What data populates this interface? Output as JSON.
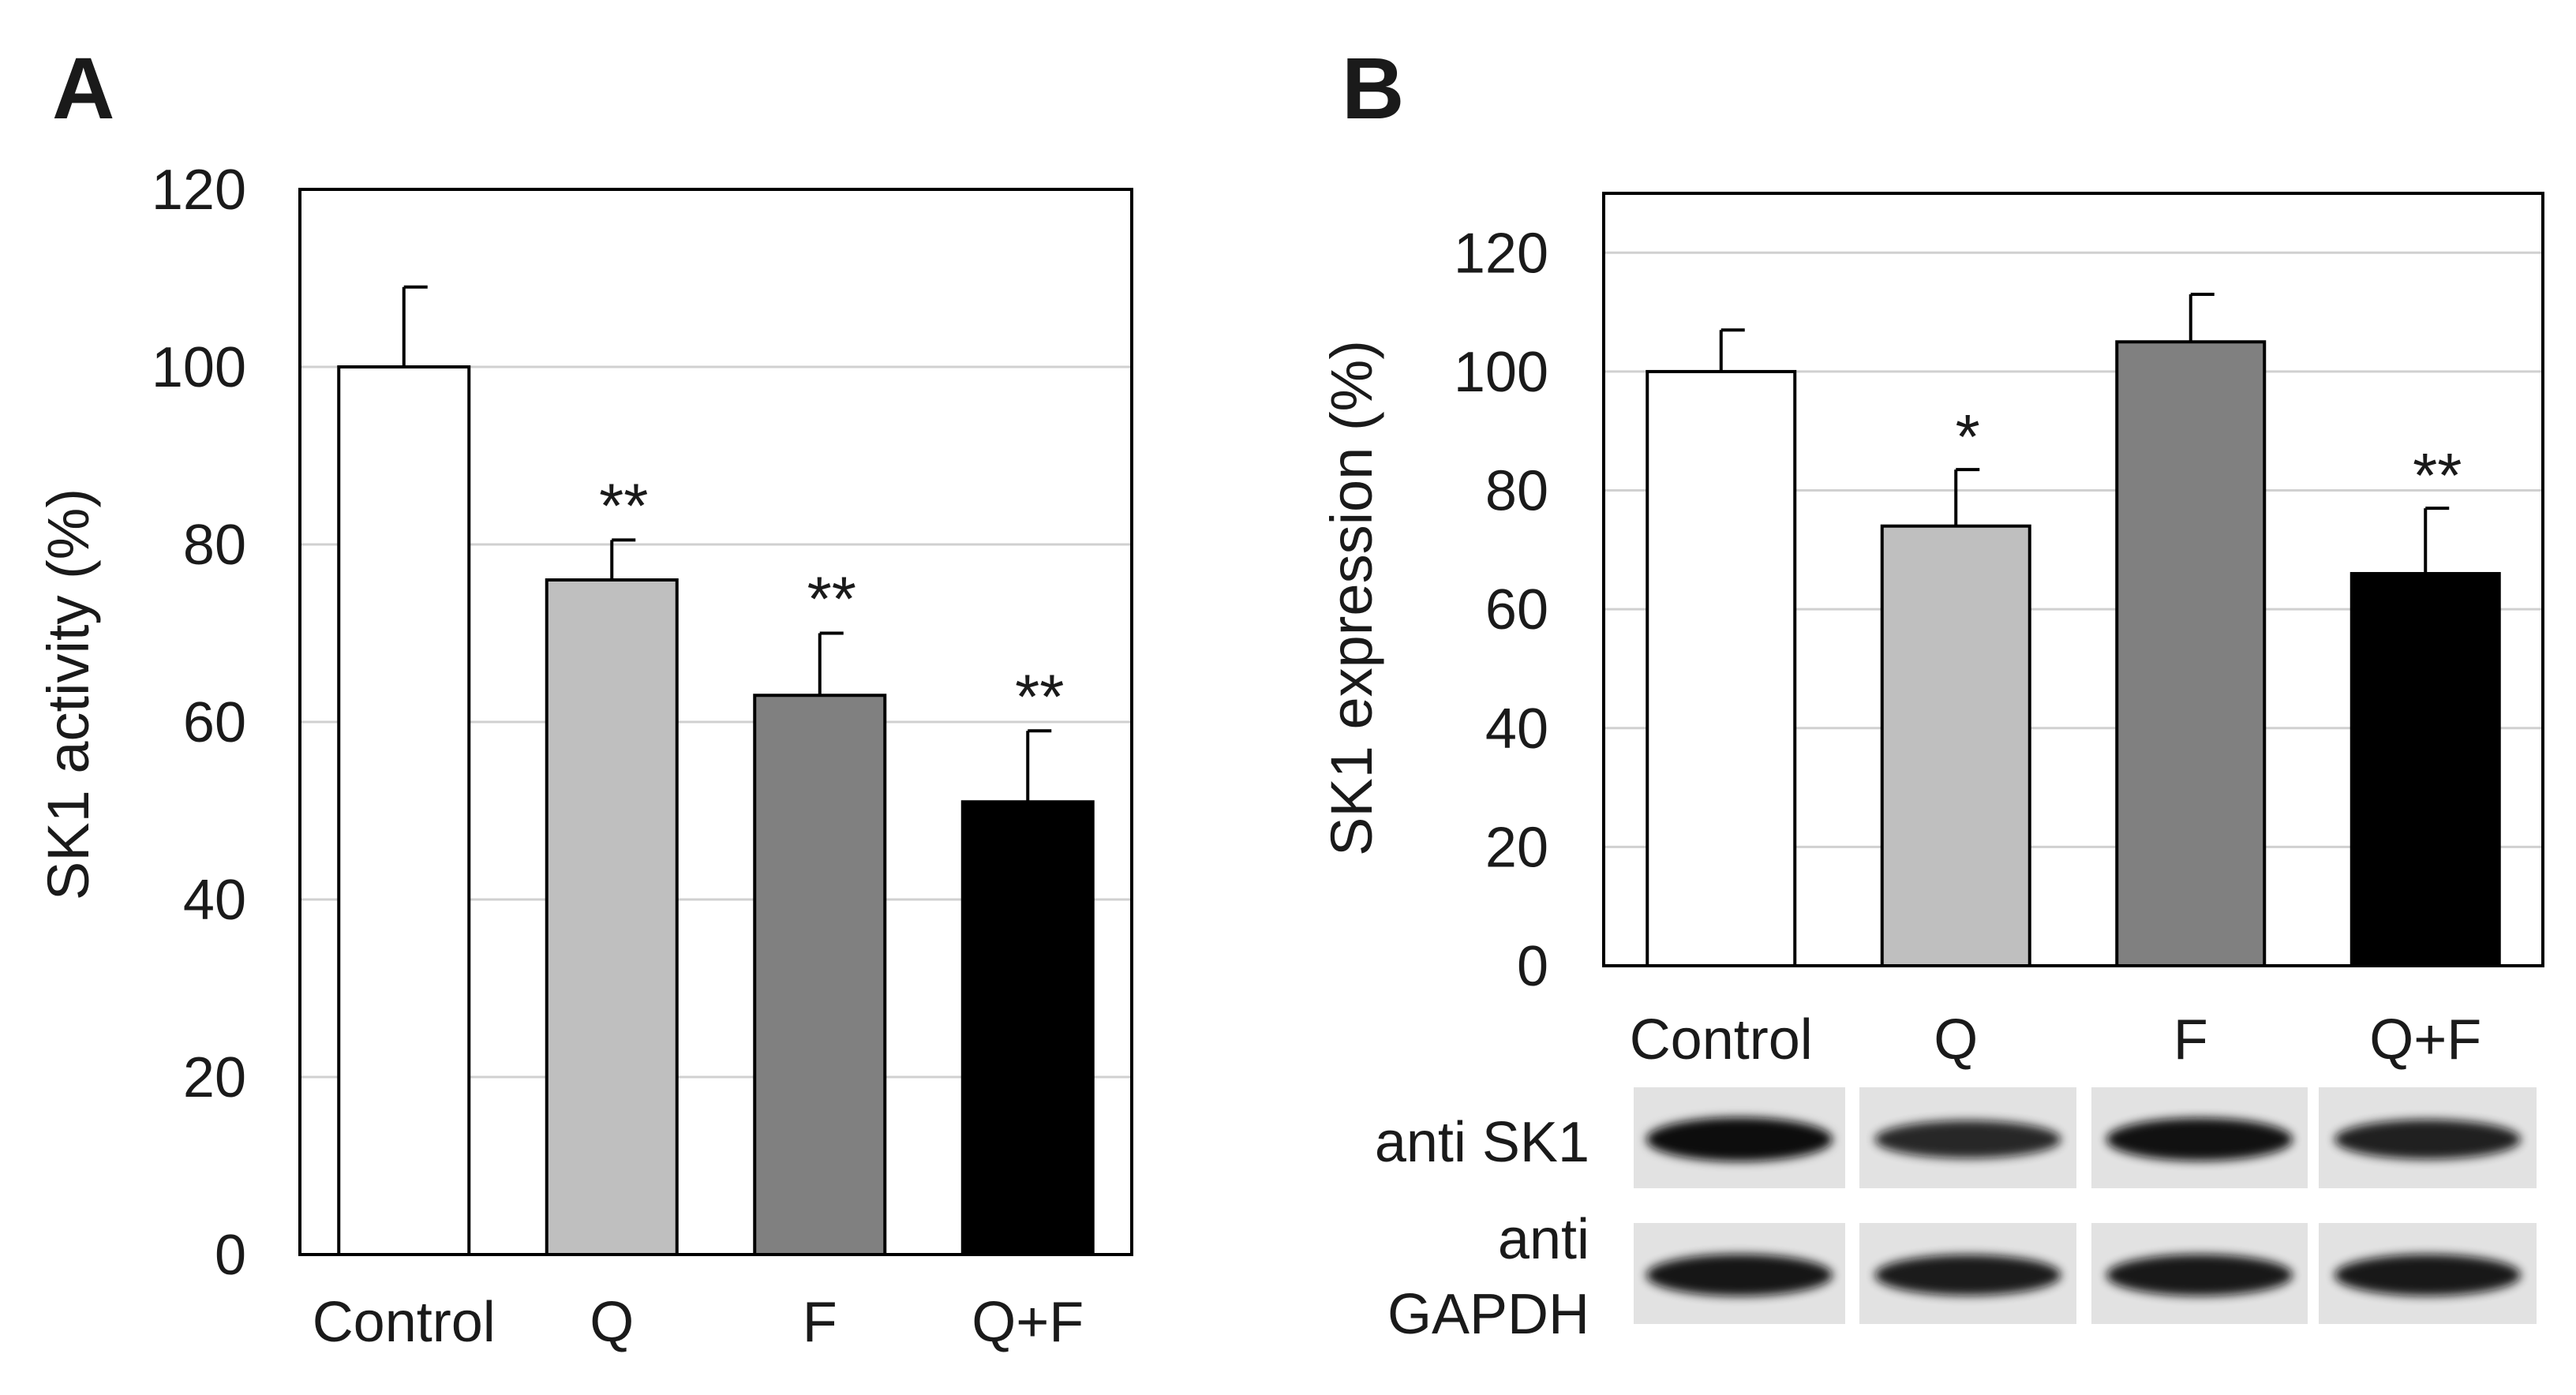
{
  "chart_data": [
    {
      "panel": "A",
      "type": "bar",
      "categories": [
        "Control",
        "Q",
        "F",
        "Q+F"
      ],
      "values": [
        100,
        76,
        63,
        51
      ],
      "errors": [
        9,
        4.5,
        7,
        8
      ],
      "significance": [
        "",
        "**",
        "**",
        "**"
      ],
      "colors": [
        "#ffffff",
        "#bfbfbf",
        "#808080",
        "#000000"
      ],
      "ylabel": "SK1 activity (%)",
      "xlabel": "",
      "ylim": [
        0,
        120
      ],
      "yticks": [
        0,
        20,
        40,
        60,
        80,
        100,
        120
      ],
      "grid": true
    },
    {
      "panel": "B",
      "type": "bar",
      "categories": [
        "Control",
        "Q",
        "F",
        "Q+F"
      ],
      "values": [
        100,
        74,
        105,
        66
      ],
      "errors": [
        7,
        9.5,
        8,
        11
      ],
      "significance": [
        "",
        "*",
        "",
        "**"
      ],
      "colors": [
        "#ffffff",
        "#bfbfbf",
        "#808080",
        "#000000"
      ],
      "ylabel": "SK1 expression (%)",
      "xlabel": "",
      "ylim": [
        0,
        130
      ],
      "yticks": [
        0,
        20,
        40,
        60,
        80,
        100,
        120
      ],
      "grid": true,
      "blots": [
        {
          "label_lines": [
            "anti SK1"
          ],
          "intensity": [
            1.0,
            0.72,
            0.95,
            0.8
          ]
        },
        {
          "label_lines": [
            "anti",
            "GAPDH"
          ],
          "intensity": [
            0.9,
            0.85,
            0.88,
            0.88
          ]
        }
      ]
    }
  ]
}
